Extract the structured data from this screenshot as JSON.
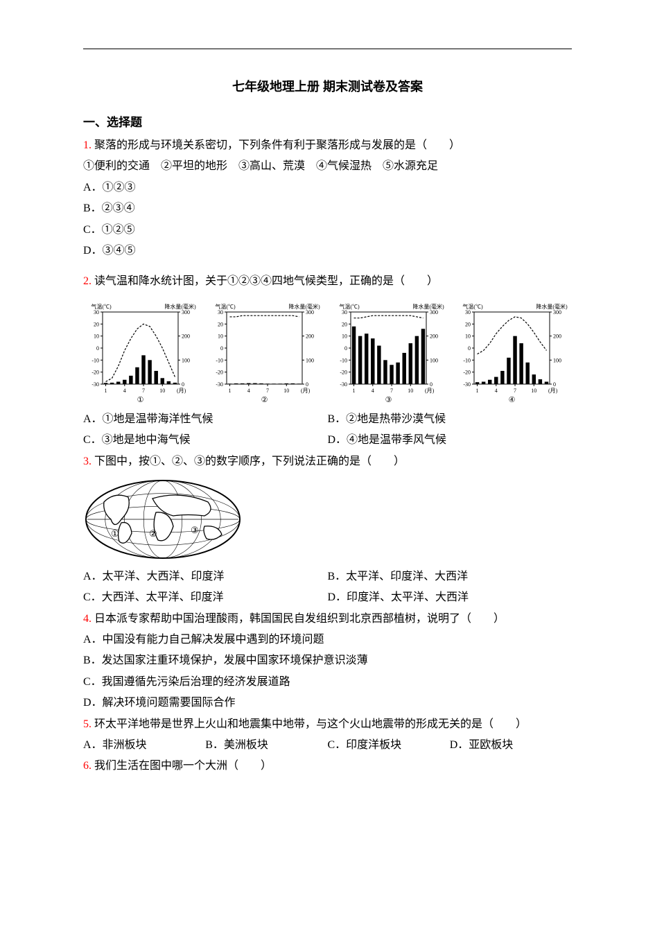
{
  "title": "七年级地理上册 期末测试卷及答案",
  "section1": "一、选择题",
  "q1": {
    "num": "1.",
    "stem": "聚落的形成与环境关系密切，下列条件有利于聚落形成与发展的是（　　）",
    "items": "①便利的交通　②平坦的地形　③高山、荒漠　④气候湿热　⑤水源充足",
    "A": "A．①②③",
    "B": "B．②③④",
    "C": "C．①②⑤",
    "D": "D．③④⑤"
  },
  "q2": {
    "num": "2.",
    "stem": "读气温和降水统计图，关于①②③④四地气候类型，正确的是（　　）",
    "A": "A．①地是温带海洋性气候",
    "B": "B．②地是热带沙漠气候",
    "C": "C．③地是地中海气候",
    "D": "D．④地是温带季风气候"
  },
  "q3": {
    "num": "3.",
    "stem": "下图中，按①、②、③的数字顺序，下列说法正确的是（　　）",
    "A": "A．太平洋、大西洋、印度洋",
    "B": "B．太平洋、印度洋、大西洋",
    "C": "C．大西洋、太平洋、印度洋",
    "D": "D．印度洋、太平洋、大西洋"
  },
  "q4": {
    "num": "4.",
    "stem": "日本派专家帮助中国治理酸雨，韩国国民自发组织到北京西部植树，说明了（　　）",
    "A": "A．中国没有能力自己解决发展中遇到的环境问题",
    "B": "B．发达国家注重环境保护，发展中国家环境保护意识淡薄",
    "C": "C．我国遵循先污染后治理的经济发展道路",
    "D": "D．解决环境问题需要国际合作"
  },
  "q5": {
    "num": "5.",
    "stem": "环太平洋地带是世界上火山和地震集中地带，与这个火山地震带的形成无关的是（　　）",
    "A": "A．非洲板块",
    "B": "B．美洲板块",
    "C": "C．印度洋板块",
    "D": "D．亚欧板块"
  },
  "q6": {
    "num": "6.",
    "stem": "我们生活在图中哪一个大洲（　　）"
  },
  "chart_labels": {
    "temp_axis": "气温(℃)",
    "precip_axis": "降水量(毫米)",
    "temp_ticks": [
      "30",
      "20",
      "10",
      "0",
      "-10",
      "-20",
      "-30"
    ],
    "precip_ticks": [
      "300",
      "200",
      "100",
      "0"
    ],
    "x_ticks": [
      "1",
      "4",
      "7",
      "10",
      "(月)"
    ],
    "panel": [
      "①",
      "②",
      "③",
      "④"
    ]
  },
  "chart1": {
    "type": "climate",
    "temp": [
      -28,
      -25,
      -15,
      -2,
      8,
      16,
      20,
      18,
      10,
      0,
      -12,
      -24
    ],
    "precip": [
      5,
      6,
      10,
      18,
      35,
      70,
      120,
      100,
      55,
      25,
      12,
      6
    ],
    "frame_color": "#000000",
    "bar_color": "#000000",
    "line_color": "#000000",
    "bg": "#ffffff"
  },
  "chart2": {
    "type": "climate",
    "temp": [
      26,
      26,
      27,
      27,
      27,
      27,
      27,
      27,
      27,
      27,
      27,
      26
    ],
    "precip": [
      2,
      3,
      3,
      4,
      4,
      3,
      2,
      2,
      2,
      3,
      3,
      2
    ],
    "frame_color": "#000000",
    "bar_color": "#000000",
    "line_color": "#000000",
    "bg": "#ffffff"
  },
  "chart3": {
    "type": "climate",
    "temp": [
      25,
      25,
      26,
      27,
      27,
      27,
      27,
      27,
      27,
      27,
      26,
      25
    ],
    "precip": [
      240,
      200,
      210,
      190,
      160,
      100,
      80,
      90,
      130,
      170,
      200,
      230
    ],
    "frame_color": "#000000",
    "bar_color": "#000000",
    "line_color": "#000000",
    "bg": "#ffffff"
  },
  "chart4": {
    "type": "climate",
    "temp": [
      -5,
      -2,
      4,
      12,
      18,
      23,
      26,
      25,
      20,
      13,
      5,
      -2
    ],
    "precip": [
      8,
      10,
      18,
      30,
      55,
      110,
      200,
      170,
      90,
      40,
      20,
      10
    ],
    "frame_color": "#000000",
    "bar_color": "#000000",
    "line_color": "#000000",
    "bg": "#ffffff"
  },
  "worldmap": {
    "labels": [
      "①",
      "②",
      "③"
    ],
    "stroke": "#000000",
    "fill": "#ffffff"
  },
  "style": {
    "qnum_color": "#ff0000",
    "text_color": "#000000",
    "fontsize_body": 16,
    "fontsize_title": 18
  }
}
